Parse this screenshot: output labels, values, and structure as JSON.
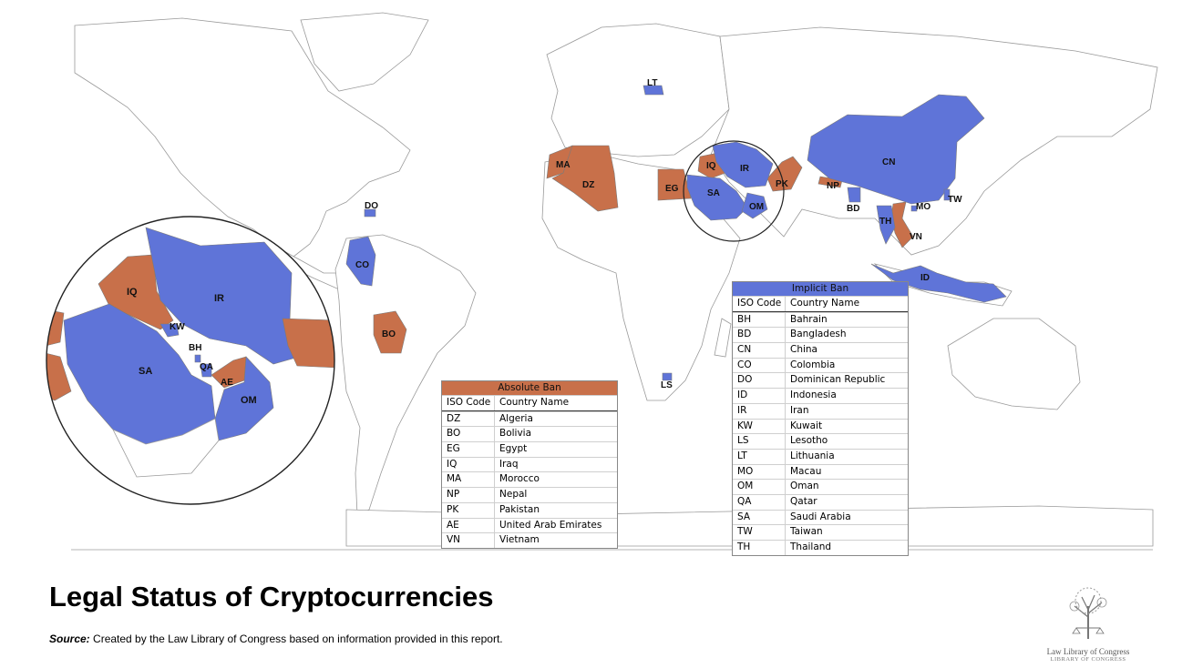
{
  "title": "Legal Status of Cryptocurrencies",
  "source": {
    "label": "Source:",
    "text": "Created by the Law Library of Congress based on information provided in this report."
  },
  "logo": {
    "name": "Law Library of Congress",
    "sub": "LIBRARY OF CONGRESS"
  },
  "colors": {
    "absolute_ban": "#c8704a",
    "implicit_ban": "#5f74d8"
  },
  "map_labels": {
    "LT": "LT",
    "MA": "MA",
    "DZ": "DZ",
    "EG": "EG",
    "IQ": "IQ",
    "IR": "IR",
    "SA": "SA",
    "OM": "OM",
    "PK": "PK",
    "NP": "NP",
    "BD": "BD",
    "CN": "CN",
    "MO": "MO",
    "TW": "TW",
    "TH": "TH",
    "VN": "VN",
    "ID": "ID",
    "DO": "DO",
    "CO": "CO",
    "BO": "BO",
    "LS": "LS"
  },
  "inset_labels": {
    "IQ": "IQ",
    "IR": "IR",
    "KW": "KW",
    "BH": "BH",
    "QA": "QA",
    "SA": "SA",
    "AE": "AE",
    "OM": "OM"
  },
  "absolute_ban": {
    "title": "Absolute Ban",
    "col_code": "ISO Code",
    "col_name": "Country Name",
    "rows": [
      {
        "code": "DZ",
        "name": "Algeria"
      },
      {
        "code": "BO",
        "name": "Bolivia"
      },
      {
        "code": "EG",
        "name": "Egypt"
      },
      {
        "code": "IQ",
        "name": "Iraq"
      },
      {
        "code": "MA",
        "name": "Morocco"
      },
      {
        "code": "NP",
        "name": "Nepal"
      },
      {
        "code": "PK",
        "name": "Pakistan"
      },
      {
        "code": "AE",
        "name": "United Arab Emirates"
      },
      {
        "code": "VN",
        "name": "Vietnam"
      }
    ]
  },
  "implicit_ban": {
    "title": "Implicit Ban",
    "col_code": "ISO Code",
    "col_name": "Country Name",
    "rows": [
      {
        "code": "BH",
        "name": "Bahrain"
      },
      {
        "code": "BD",
        "name": "Bangladesh"
      },
      {
        "code": "CN",
        "name": "China"
      },
      {
        "code": "CO",
        "name": "Colombia"
      },
      {
        "code": "DO",
        "name": "Dominican Republic"
      },
      {
        "code": "ID",
        "name": "Indonesia"
      },
      {
        "code": "IR",
        "name": "Iran"
      },
      {
        "code": "KW",
        "name": "Kuwait"
      },
      {
        "code": "LS",
        "name": "Lesotho"
      },
      {
        "code": "LT",
        "name": "Lithuania"
      },
      {
        "code": "MO",
        "name": "Macau"
      },
      {
        "code": "OM",
        "name": "Oman"
      },
      {
        "code": "QA",
        "name": "Qatar"
      },
      {
        "code": "SA",
        "name": "Saudi Arabia"
      },
      {
        "code": "TW",
        "name": "Taiwan"
      },
      {
        "code": "TH",
        "name": "Thailand"
      }
    ]
  }
}
